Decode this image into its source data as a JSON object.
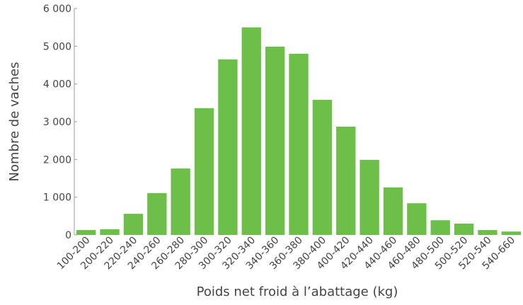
{
  "chart_data": {
    "type": "bar",
    "x_label": "Poids net froid à l’abattage (kg)",
    "y_label": "Nombre de vaches",
    "categories": [
      "100-200",
      "200-220",
      "220-240",
      "240-260",
      "260-280",
      "280-300",
      "300-320",
      "320-340",
      "340-360",
      "360-380",
      "380-400",
      "400-420",
      "420-440",
      "440-460",
      "460-480",
      "480-500",
      "500-520",
      "520-540",
      "540-660"
    ],
    "values": [
      130,
      150,
      560,
      1110,
      1760,
      3360,
      4650,
      5500,
      4990,
      4800,
      3580,
      2870,
      1990,
      1260,
      840,
      390,
      300,
      130,
      90
    ],
    "color": "#6cc04a",
    "ylim": [
      0,
      6000
    ],
    "yticks": [
      0,
      {
        "value": 1000,
        "label": "1 000"
      },
      {
        "value": 2000,
        "label": "2 000"
      },
      {
        "value": 3000,
        "label": "3 000"
      },
      {
        "value": 4000,
        "label": "4 000"
      },
      {
        "value": 5000,
        "label": "5 000"
      },
      {
        "value": 6000,
        "label": "6 000"
      }
    ],
    "grid": false
  }
}
